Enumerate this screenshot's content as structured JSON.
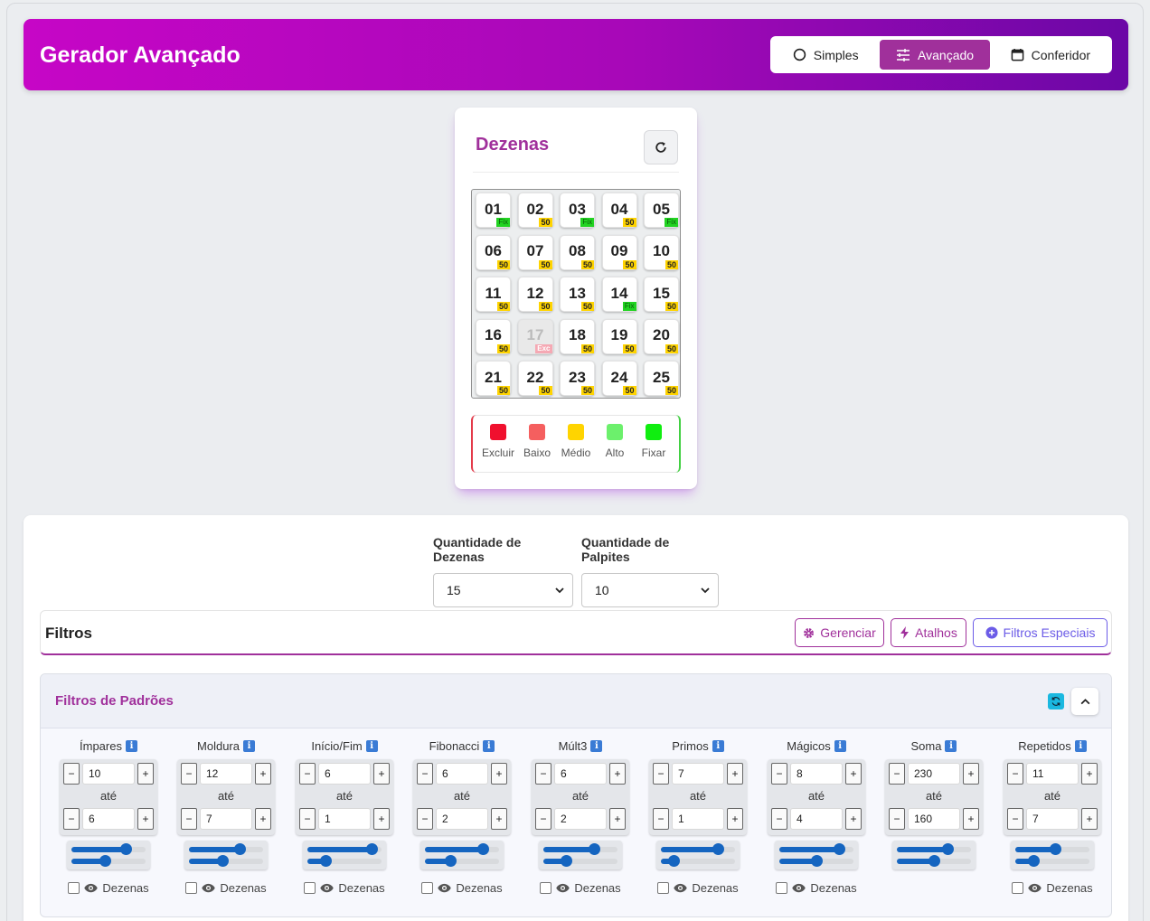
{
  "header": {
    "title": "Gerador Avançado",
    "modes": [
      {
        "label": "Simples",
        "icon": "circle-icon"
      },
      {
        "label": "Avançado",
        "icon": "sliders-icon",
        "active": true
      },
      {
        "label": "Conferidor",
        "icon": "calendar-icon"
      }
    ],
    "gradient": [
      "#c606c6",
      "#6b07a6"
    ],
    "accent": "#a0309b"
  },
  "dezenas": {
    "title": "Dezenas",
    "cells": [
      {
        "n": "01",
        "tag": "Fix"
      },
      {
        "n": "02",
        "tag": "50"
      },
      {
        "n": "03",
        "tag": "Fix"
      },
      {
        "n": "04",
        "tag": "50"
      },
      {
        "n": "05",
        "tag": "Fix"
      },
      {
        "n": "06",
        "tag": "50"
      },
      {
        "n": "07",
        "tag": "50"
      },
      {
        "n": "08",
        "tag": "50"
      },
      {
        "n": "09",
        "tag": "50"
      },
      {
        "n": "10",
        "tag": "50"
      },
      {
        "n": "11",
        "tag": "50"
      },
      {
        "n": "12",
        "tag": "50"
      },
      {
        "n": "13",
        "tag": "50"
      },
      {
        "n": "14",
        "tag": "Fix"
      },
      {
        "n": "15",
        "tag": "50"
      },
      {
        "n": "16",
        "tag": "50"
      },
      {
        "n": "17",
        "tag": "Exc"
      },
      {
        "n": "18",
        "tag": "50"
      },
      {
        "n": "19",
        "tag": "50"
      },
      {
        "n": "20",
        "tag": "50"
      },
      {
        "n": "21",
        "tag": "50"
      },
      {
        "n": "22",
        "tag": "50"
      },
      {
        "n": "23",
        "tag": "50"
      },
      {
        "n": "24",
        "tag": "50"
      },
      {
        "n": "25",
        "tag": "50"
      }
    ],
    "legend": [
      {
        "label": "Excluir",
        "color": "#f0102e"
      },
      {
        "label": "Baixo",
        "color": "#f55f5f"
      },
      {
        "label": "Médio",
        "color": "#ffd400"
      },
      {
        "label": "Alto",
        "color": "#6cf06c"
      },
      {
        "label": "Fixar",
        "color": "#10ee10"
      }
    ]
  },
  "quantidade": {
    "dezenas_label": "Quantidade de Dezenas",
    "dezenas_value": "15",
    "palpites_label": "Quantidade de Palpites",
    "palpites_value": "10"
  },
  "filtros": {
    "title": "Filtros",
    "buttons": [
      "Gerenciar",
      "Atalhos",
      "Filtros Especiais"
    ]
  },
  "padroes": {
    "title": "Filtros de Padrões",
    "ate_label": "até",
    "eye_label": "Dezenas",
    "columns": [
      {
        "name": "Ímpares",
        "max": "10",
        "min": "6",
        "r1": 0.78,
        "r2": 0.45,
        "show_eye": true
      },
      {
        "name": "Moldura",
        "max": "12",
        "min": "7",
        "r1": 0.72,
        "r2": 0.45,
        "show_eye": true
      },
      {
        "name": "Início/Fim",
        "max": "6",
        "min": "1",
        "r1": 0.94,
        "r2": 0.2,
        "show_eye": true
      },
      {
        "name": "Fibonacci",
        "max": "6",
        "min": "2",
        "r1": 0.84,
        "r2": 0.32,
        "show_eye": true
      },
      {
        "name": "Múlt3",
        "max": "6",
        "min": "2",
        "r1": 0.73,
        "r2": 0.28,
        "show_eye": true
      },
      {
        "name": "Primos",
        "max": "7",
        "min": "1",
        "r1": 0.82,
        "r2": 0.12,
        "show_eye": true
      },
      {
        "name": "Mágicos",
        "max": "8",
        "min": "4",
        "r1": 0.87,
        "r2": 0.5,
        "show_eye": true
      },
      {
        "name": "Soma",
        "max": "230",
        "min": "160",
        "r1": 0.72,
        "r2": 0.5,
        "show_eye": false
      },
      {
        "name": "Repetidos",
        "max": "11",
        "min": "7",
        "r1": 0.55,
        "r2": 0.2,
        "show_eye": true
      }
    ]
  }
}
